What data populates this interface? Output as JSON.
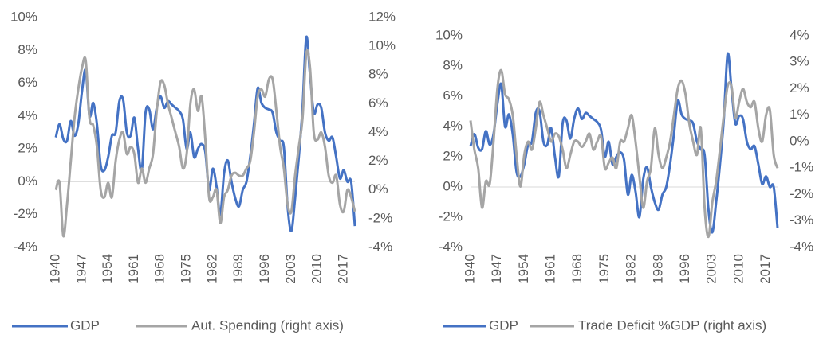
{
  "chart_data": [
    {
      "type": "line",
      "x": [
        1940,
        1941,
        1942,
        1943,
        1944,
        1945,
        1946,
        1947,
        1948,
        1949,
        1950,
        1951,
        1952,
        1953,
        1954,
        1955,
        1956,
        1957,
        1958,
        1959,
        1960,
        1961,
        1962,
        1963,
        1964,
        1965,
        1966,
        1967,
        1968,
        1969,
        1970,
        1971,
        1972,
        1973,
        1974,
        1975,
        1976,
        1977,
        1978,
        1979,
        1980,
        1981,
        1982,
        1983,
        1984,
        1985,
        1986,
        1987,
        1988,
        1989,
        1990,
        1991,
        1992,
        1993,
        1994,
        1995,
        1996,
        1997,
        1998,
        1999,
        2000,
        2001,
        2002,
        2003,
        2004,
        2005,
        2006,
        2007,
        2008,
        2009,
        2010,
        2011,
        2012,
        2013,
        2014,
        2015,
        2016,
        2017,
        2018,
        2019,
        2020
      ],
      "xlim": [
        1940,
        2020
      ],
      "xticks": [
        1940,
        1947,
        1954,
        1961,
        1968,
        1975,
        1982,
        1989,
        1996,
        2003,
        2010,
        2017
      ],
      "ylim": [
        -4,
        10
      ],
      "yticks": [
        {
          "value": -4,
          "label": "-4%"
        },
        {
          "value": -2,
          "label": "-2%"
        },
        {
          "value": 0,
          "label": "0%"
        },
        {
          "value": 2,
          "label": "2%"
        },
        {
          "value": 4,
          "label": "4%"
        },
        {
          "value": 6,
          "label": "6%"
        },
        {
          "value": 8,
          "label": "8%"
        },
        {
          "value": 10,
          "label": "10%"
        }
      ],
      "y2lim": [
        -4,
        12
      ],
      "y2ticks": [
        {
          "value": -4,
          "label": "-4%"
        },
        {
          "value": -2,
          "label": "-2%"
        },
        {
          "value": 0,
          "label": "0%"
        },
        {
          "value": 2,
          "label": "2%"
        },
        {
          "value": 4,
          "label": "4%"
        },
        {
          "value": 6,
          "label": "6%"
        },
        {
          "value": 8,
          "label": "8%"
        },
        {
          "value": 10,
          "label": "10%"
        },
        {
          "value": 12,
          "label": "12%"
        }
      ],
      "series": [
        {
          "name": "GDP",
          "color": "#4472c4",
          "values": [
            2.7,
            3.5,
            2.6,
            2.5,
            3.7,
            2.8,
            3.5,
            5.5,
            6.8,
            4.0,
            4.8,
            3.5,
            1.0,
            0.7,
            1.5,
            2.8,
            3.0,
            4.9,
            5.0,
            3.0,
            2.8,
            3.9,
            2.0,
            0.7,
            4.2,
            4.4,
            3.2,
            4.5,
            5.2,
            4.5,
            4.9,
            4.7,
            4.5,
            4.3,
            3.8,
            2.0,
            3.0,
            1.5,
            2.0,
            2.3,
            1.8,
            -0.5,
            0.8,
            -0.3,
            -2.0,
            0.5,
            1.3,
            0.0,
            -1.0,
            -1.5,
            -0.5,
            0.0,
            1.5,
            3.5,
            5.7,
            4.8,
            4.5,
            4.4,
            4.2,
            3.0,
            2.5,
            2.1,
            -1.5,
            -3.0,
            -1.0,
            1.5,
            4.5,
            8.8,
            6.5,
            4.2,
            4.7,
            4.5,
            3.0,
            2.5,
            2.7,
            1.5,
            0.2,
            0.7,
            0.0,
            0.0,
            -2.7
          ]
        },
        {
          "name": "Aut. Spending (right axis)",
          "color": "#a5a5a5",
          "axis": "y2",
          "values": [
            0,
            0.5,
            -3.2,
            -1,
            2,
            5,
            7,
            8.5,
            9,
            5,
            4.5,
            3,
            0,
            -0.5,
            0.5,
            -0.5,
            2,
            3.5,
            4,
            2.5,
            3,
            2.5,
            0.5,
            1.5,
            0.5,
            1.5,
            2.5,
            5.5,
            7.5,
            7.3,
            6,
            5,
            4,
            3,
            1.5,
            2.5,
            6,
            7,
            5.5,
            6.5,
            3.5,
            -0.5,
            -0.5,
            0,
            -2.3,
            -0.5,
            0,
            1,
            1.2,
            1,
            1,
            1.5,
            2,
            4,
            6.5,
            7,
            6.5,
            7.7,
            7.7,
            5.5,
            3,
            1.5,
            -1,
            -1.5,
            1,
            3,
            5,
            9.5,
            8.5,
            4,
            3.5,
            4,
            3,
            1,
            0.5,
            1,
            -1,
            -1.5,
            0,
            -0.5,
            -1.5
          ]
        }
      ]
    },
    {
      "type": "line",
      "x": [
        1940,
        1941,
        1942,
        1943,
        1944,
        1945,
        1946,
        1947,
        1948,
        1949,
        1950,
        1951,
        1952,
        1953,
        1954,
        1955,
        1956,
        1957,
        1958,
        1959,
        1960,
        1961,
        1962,
        1963,
        1964,
        1965,
        1966,
        1967,
        1968,
        1969,
        1970,
        1971,
        1972,
        1973,
        1974,
        1975,
        1976,
        1977,
        1978,
        1979,
        1980,
        1981,
        1982,
        1983,
        1984,
        1985,
        1986,
        1987,
        1988,
        1989,
        1990,
        1991,
        1992,
        1993,
        1994,
        1995,
        1996,
        1997,
        1998,
        1999,
        2000,
        2001,
        2002,
        2003,
        2004,
        2005,
        2006,
        2007,
        2008,
        2009,
        2010,
        2011,
        2012,
        2013,
        2014,
        2015,
        2016,
        2017,
        2018,
        2019,
        2020
      ],
      "xlim": [
        1940,
        2020
      ],
      "xticks": [
        1940,
        1947,
        1954,
        1961,
        1968,
        1975,
        1982,
        1989,
        1996,
        2003,
        2010,
        2017
      ],
      "ylim": [
        -4,
        10
      ],
      "yticks": [
        {
          "value": -4,
          "label": "-4%"
        },
        {
          "value": -2,
          "label": "-2%"
        },
        {
          "value": 0,
          "label": "0%"
        },
        {
          "value": 2,
          "label": "2%"
        },
        {
          "value": 4,
          "label": "4%"
        },
        {
          "value": 6,
          "label": "6%"
        },
        {
          "value": 8,
          "label": "8%"
        },
        {
          "value": 10,
          "label": "10%"
        }
      ],
      "y2lim": [
        -4,
        4
      ],
      "y2ticks": [
        {
          "value": -4,
          "label": "-4%"
        },
        {
          "value": -3,
          "label": "-3%"
        },
        {
          "value": -2,
          "label": "-2%"
        },
        {
          "value": -1,
          "label": "-1%"
        },
        {
          "value": 0,
          "label": "0%"
        },
        {
          "value": 1,
          "label": "1%"
        },
        {
          "value": 2,
          "label": "2%"
        },
        {
          "value": 3,
          "label": "3%"
        },
        {
          "value": 4,
          "label": "4%"
        }
      ],
      "series": [
        {
          "name": "GDP",
          "color": "#4472c4",
          "values": [
            2.7,
            3.5,
            2.6,
            2.5,
            3.7,
            2.8,
            3.5,
            5.5,
            6.8,
            4.0,
            4.8,
            3.5,
            1.0,
            0.7,
            1.5,
            2.8,
            3.0,
            4.9,
            5.0,
            3.0,
            2.8,
            3.9,
            2.0,
            0.7,
            4.2,
            4.4,
            3.2,
            4.5,
            5.2,
            4.5,
            4.9,
            4.7,
            4.5,
            4.3,
            3.8,
            2.0,
            3.0,
            1.5,
            2.0,
            2.3,
            1.8,
            -0.5,
            0.8,
            -0.3,
            -2.0,
            0.5,
            1.3,
            0.0,
            -1.0,
            -1.5,
            -0.5,
            0.0,
            1.5,
            3.5,
            5.7,
            4.8,
            4.5,
            4.4,
            4.2,
            3.0,
            2.5,
            2.1,
            -1.5,
            -3.0,
            -1.0,
            1.5,
            4.5,
            8.8,
            6.5,
            4.2,
            4.7,
            4.5,
            3.0,
            2.5,
            2.7,
            1.5,
            0.2,
            0.7,
            0.0,
            0.0,
            -2.7
          ]
        },
        {
          "name": "Trade Deficit %GDP (right axis)",
          "color": "#a5a5a5",
          "axis": "y2",
          "values": [
            0.8,
            -0.3,
            -1,
            -2.5,
            -1.5,
            -1.6,
            0,
            2,
            2.7,
            1.8,
            1.6,
            1,
            -0.5,
            -1.7,
            -0.5,
            0,
            -0.3,
            0.5,
            1.5,
            1,
            0.5,
            0,
            0.3,
            0.2,
            -0.3,
            -1,
            -0.5,
            0,
            0,
            -0.2,
            0,
            0.3,
            -0.3,
            0,
            0.2,
            -1,
            -0.8,
            -0.6,
            -1,
            0,
            0,
            0.5,
            1,
            0,
            -1.3,
            -2.5,
            -1.5,
            -1,
            0.5,
            -0.5,
            -1,
            -0.6,
            0,
            1,
            2,
            2.3,
            1.8,
            0.7,
            0,
            -0.5,
            0.5,
            -2.5,
            -3.6,
            -2.3,
            -1.5,
            -0.3,
            1,
            2.1,
            2.1,
            0.9,
            1.5,
            2,
            1.5,
            1.3,
            1.5,
            0.5,
            0,
            1,
            1.2,
            -0.5,
            -1
          ]
        }
      ]
    }
  ]
}
